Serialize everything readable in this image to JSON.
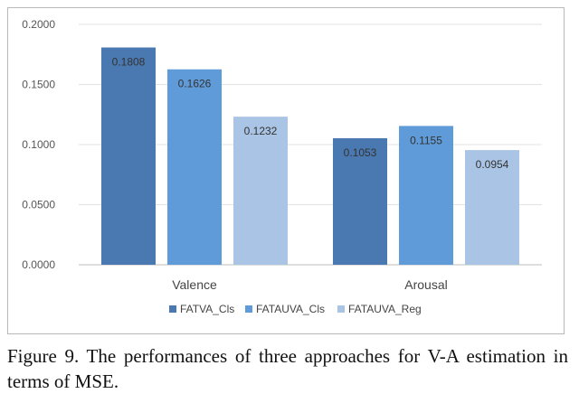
{
  "chart_data": {
    "type": "bar",
    "categories": [
      "Valence",
      "Arousal"
    ],
    "series": [
      {
        "name": "FATVA_Cls",
        "values": [
          0.1808,
          0.1053
        ],
        "labels": [
          "0.1808",
          "0.1053"
        ],
        "color": "#4a78b0"
      },
      {
        "name": "FATAUVA_Cls",
        "values": [
          0.1626,
          0.1155
        ],
        "labels": [
          "0.1626",
          "0.1155"
        ],
        "color": "#5f9bd8"
      },
      {
        "name": "FATAUVA_Reg",
        "values": [
          0.1232,
          0.0954
        ],
        "labels": [
          "0.1232",
          "0.0954"
        ],
        "color": "#a9c4e4"
      }
    ],
    "ylim": [
      0,
      0.2
    ],
    "yticks": [
      "0.0000",
      "0.0500",
      "0.1000",
      "0.1500",
      "0.2000"
    ],
    "title": "",
    "xlabel": "",
    "ylabel": "",
    "grid": true,
    "legend": "bottom"
  },
  "caption": "Figure 9. The performances of three approaches for V-A estimation in terms of MSE."
}
